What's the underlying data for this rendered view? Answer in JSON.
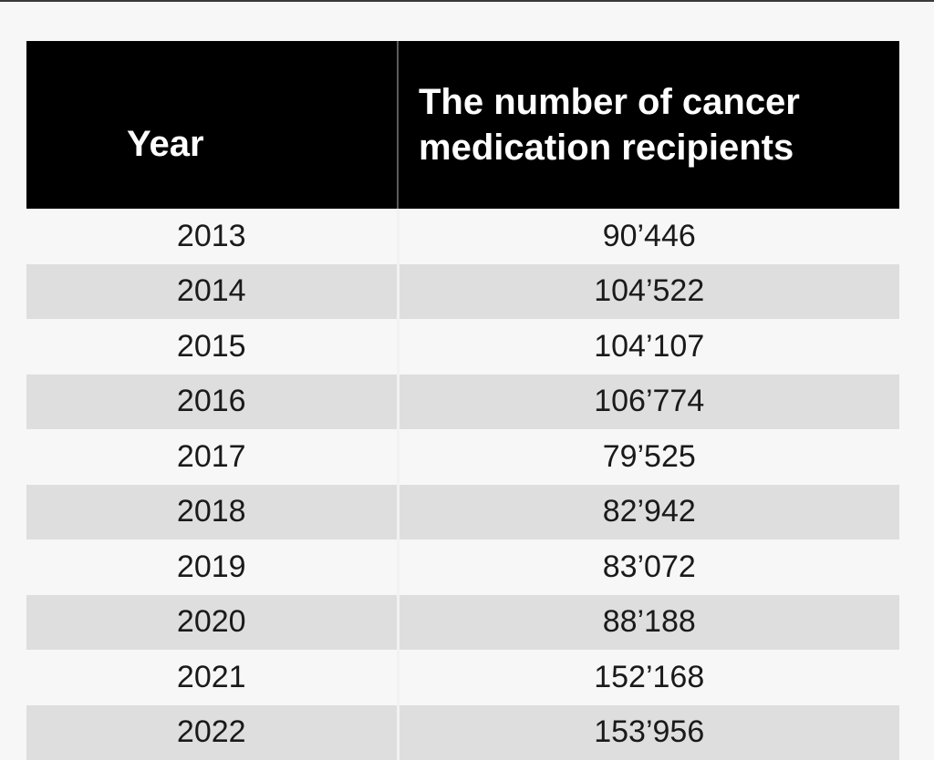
{
  "chart_data": {
    "type": "table",
    "columns": [
      "Year",
      "The number of cancer medication recipients"
    ],
    "rows": [
      {
        "year": "2013",
        "count": "90’446"
      },
      {
        "year": "2014",
        "count": "104’522"
      },
      {
        "year": "2015",
        "count": "104’107"
      },
      {
        "year": "2016",
        "count": "106’774"
      },
      {
        "year": "2017",
        "count": "79’525"
      },
      {
        "year": "2018",
        "count": "82’942"
      },
      {
        "year": "2019",
        "count": "83’072"
      },
      {
        "year": "2020",
        "count": "88’188"
      },
      {
        "year": "2021",
        "count": "152’168"
      },
      {
        "year": "2022",
        "count": "153’956"
      }
    ],
    "values": [
      90446,
      104522,
      104107,
      106774,
      79525,
      82942,
      83072,
      88188,
      152168,
      153956
    ]
  },
  "colors": {
    "header_bg": "#000000",
    "header_text": "#ffffff",
    "row_light": "#f7f7f7",
    "row_shaded": "#dedede"
  }
}
